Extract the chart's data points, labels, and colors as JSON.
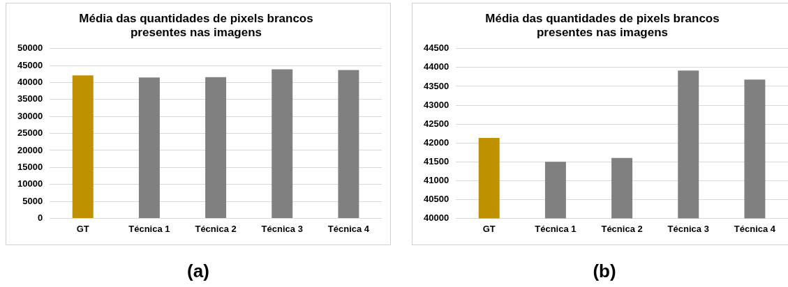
{
  "chart_data": [
    {
      "type": "bar",
      "title": "Média das quantidades de pixels brancos\npresentes nas imagens",
      "categories": [
        "GT",
        "Técnica 1",
        "Técnica 2",
        "Técnica 3",
        "Técnica 4"
      ],
      "values": [
        42130,
        41500,
        41600,
        43920,
        43680
      ],
      "colors": [
        "#bf9000",
        "#808080",
        "#808080",
        "#808080",
        "#808080"
      ],
      "ylim": [
        0,
        50000
      ],
      "yticks": [
        0,
        5000,
        10000,
        15000,
        20000,
        25000,
        30000,
        35000,
        40000,
        45000,
        50000
      ],
      "grid": "y",
      "legend": false,
      "annotations": [
        "(a)"
      ]
    },
    {
      "type": "bar",
      "title": "Média das quantidades de pixels brancos\npresentes nas imagens",
      "categories": [
        "GT",
        "Técnica 1",
        "Técnica 2",
        "Técnica 3",
        "Técnica 4"
      ],
      "values": [
        42130,
        41500,
        41600,
        43920,
        43680
      ],
      "colors": [
        "#bf9000",
        "#808080",
        "#808080",
        "#808080",
        "#808080"
      ],
      "ylim": [
        40000,
        44500
      ],
      "yticks": [
        40000,
        40500,
        41000,
        41500,
        42000,
        42500,
        43000,
        43500,
        44000,
        44500
      ],
      "grid": "y",
      "legend": false,
      "annotations": [
        "(b)"
      ]
    }
  ]
}
